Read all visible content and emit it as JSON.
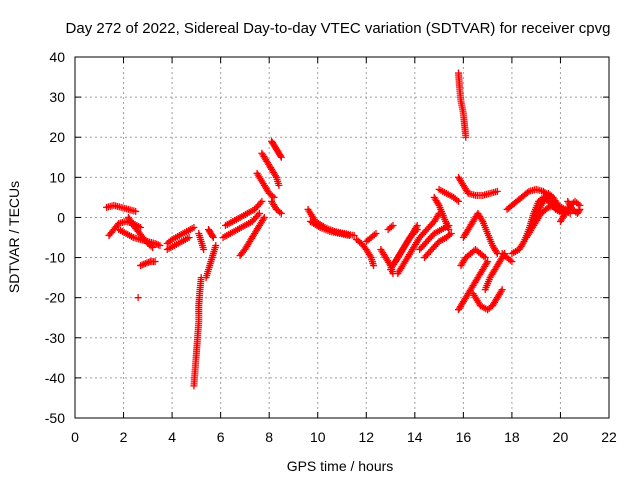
{
  "chart_data": {
    "type": "scatter",
    "title": "Day 272 of 2022, Sidereal Day-to-day VTEC variation (SDTVAR) for receiver cpvg",
    "xlabel": "GPS time / hours",
    "ylabel": "SDTVAR / TECUs",
    "xlim": [
      0,
      22
    ],
    "ylim": [
      -50,
      40
    ],
    "xticks": [
      0,
      2,
      4,
      6,
      8,
      10,
      12,
      14,
      16,
      18,
      20,
      22
    ],
    "yticks": [
      -50,
      -40,
      -30,
      -20,
      -10,
      0,
      10,
      20,
      30,
      40
    ],
    "grid": true,
    "marker": "+",
    "series": [
      {
        "name": "SDTVAR",
        "color": "#ff0000",
        "segments": [
          [
            [
              1.4,
              -4.5
            ],
            [
              1.6,
              -3
            ],
            [
              1.8,
              -1.5
            ],
            [
              2.1,
              -1
            ],
            [
              2.4,
              -1.5
            ],
            [
              2.7,
              -2.5
            ]
          ],
          [
            [
              1.3,
              2.5
            ],
            [
              1.6,
              3
            ],
            [
              1.9,
              2.5
            ],
            [
              2.2,
              2
            ],
            [
              2.5,
              1.5
            ]
          ],
          [
            [
              2.2,
              0
            ],
            [
              2.4,
              -2
            ],
            [
              2.6,
              -3.5
            ],
            [
              2.8,
              -5
            ],
            [
              3.0,
              -6.5
            ],
            [
              3.2,
              -7.5
            ]
          ],
          [
            [
              1.8,
              -3
            ],
            [
              2.1,
              -4
            ],
            [
              2.4,
              -5
            ],
            [
              2.7,
              -5.5
            ],
            [
              3.0,
              -6
            ],
            [
              3.3,
              -6.5
            ],
            [
              3.5,
              -7
            ]
          ],
          [
            [
              2.7,
              -12
            ],
            [
              2.9,
              -11.5
            ],
            [
              3.1,
              -11
            ],
            [
              3.3,
              -11
            ]
          ],
          [
            [
              2.6,
              -20
            ]
          ],
          [
            [
              3.8,
              -6.5
            ],
            [
              4.0,
              -5.5
            ],
            [
              4.3,
              -4.5
            ],
            [
              4.6,
              -3.5
            ],
            [
              4.9,
              -2.5
            ]
          ],
          [
            [
              3.8,
              -8
            ],
            [
              4.1,
              -7
            ],
            [
              4.4,
              -6
            ],
            [
              4.7,
              -5
            ]
          ],
          [
            [
              4.9,
              -42
            ],
            [
              4.95,
              -38
            ],
            [
              5.0,
              -34
            ],
            [
              5.05,
              -30
            ],
            [
              5.1,
              -26
            ],
            [
              5.1,
              -22
            ],
            [
              5.15,
              -18
            ],
            [
              5.2,
              -15
            ]
          ],
          [
            [
              5.1,
              -4
            ],
            [
              5.2,
              -6
            ],
            [
              5.3,
              -8
            ]
          ],
          [
            [
              5.4,
              -15
            ],
            [
              5.5,
              -13
            ],
            [
              5.6,
              -11
            ],
            [
              5.7,
              -9
            ],
            [
              5.8,
              -7
            ]
          ],
          [
            [
              5.5,
              -3
            ],
            [
              5.6,
              -4
            ],
            [
              5.7,
              -5
            ]
          ],
          [
            [
              6.1,
              -5
            ],
            [
              6.4,
              -4
            ],
            [
              6.7,
              -3
            ],
            [
              7.0,
              -2
            ],
            [
              7.3,
              -1
            ],
            [
              7.6,
              1
            ]
          ],
          [
            [
              6.2,
              -2
            ],
            [
              6.5,
              -1
            ],
            [
              6.8,
              0
            ],
            [
              7.1,
              1
            ],
            [
              7.4,
              2
            ],
            [
              7.7,
              4
            ]
          ],
          [
            [
              6.8,
              -9.5
            ],
            [
              7.0,
              -8
            ],
            [
              7.2,
              -6
            ],
            [
              7.4,
              -4
            ],
            [
              7.6,
              -2
            ],
            [
              7.8,
              0
            ]
          ],
          [
            [
              7.5,
              11
            ],
            [
              7.8,
              8
            ],
            [
              8.0,
              6
            ],
            [
              8.2,
              5
            ]
          ],
          [
            [
              7.7,
              16
            ],
            [
              7.9,
              14
            ],
            [
              8.1,
              12
            ],
            [
              8.3,
              10
            ],
            [
              8.4,
              8
            ]
          ],
          [
            [
              8.1,
              19
            ],
            [
              8.2,
              18
            ],
            [
              8.3,
              17
            ],
            [
              8.4,
              16
            ],
            [
              8.5,
              15
            ]
          ],
          [
            [
              8.1,
              4
            ],
            [
              8.3,
              2
            ],
            [
              8.5,
              1
            ]
          ],
          [
            [
              9.6,
              2
            ],
            [
              9.9,
              -1
            ],
            [
              10.3,
              -2.5
            ],
            [
              10.7,
              -3.5
            ],
            [
              11.1,
              -4
            ],
            [
              11.5,
              -4.5
            ]
          ],
          [
            [
              9.7,
              -1
            ],
            [
              10.1,
              -2.5
            ],
            [
              10.5,
              -3.5
            ],
            [
              10.9,
              -4
            ],
            [
              11.3,
              -4.5
            ]
          ],
          [
            [
              11.6,
              -5.5
            ],
            [
              11.8,
              -6.5
            ],
            [
              12.0,
              -8
            ],
            [
              12.2,
              -10
            ],
            [
              12.3,
              -12
            ]
          ],
          [
            [
              12.0,
              -6
            ],
            [
              12.2,
              -5
            ],
            [
              12.4,
              -4
            ]
          ],
          [
            [
              12.6,
              -8
            ],
            [
              12.8,
              -10
            ],
            [
              13.0,
              -12
            ],
            [
              13.1,
              -14
            ]
          ],
          [
            [
              12.9,
              -3
            ],
            [
              13.1,
              -2
            ]
          ],
          [
            [
              13.0,
              -13
            ],
            [
              13.3,
              -10
            ],
            [
              13.6,
              -7
            ],
            [
              13.9,
              -4
            ],
            [
              14.1,
              -2
            ]
          ],
          [
            [
              13.2,
              -11
            ],
            [
              13.5,
              -8
            ],
            [
              13.8,
              -5
            ],
            [
              14.1,
              -3
            ]
          ],
          [
            [
              13.3,
              -14
            ],
            [
              13.6,
              -11
            ],
            [
              13.9,
              -8
            ],
            [
              14.2,
              -5
            ],
            [
              14.5,
              -3
            ],
            [
              14.8,
              -1
            ],
            [
              15.0,
              1
            ]
          ],
          [
            [
              14.2,
              -8
            ],
            [
              14.5,
              -6
            ],
            [
              14.8,
              -4
            ],
            [
              15.1,
              -3
            ],
            [
              15.4,
              -2
            ]
          ],
          [
            [
              14.4,
              -10
            ],
            [
              14.7,
              -8
            ],
            [
              15.0,
              -6
            ],
            [
              15.3,
              -5
            ],
            [
              15.5,
              -4
            ]
          ],
          [
            [
              14.8,
              5
            ],
            [
              15.0,
              3
            ],
            [
              15.2,
              0
            ],
            [
              15.4,
              -3
            ]
          ],
          [
            [
              15.0,
              7
            ],
            [
              15.3,
              6
            ],
            [
              15.6,
              5
            ],
            [
              15.8,
              4
            ]
          ],
          [
            [
              15.8,
              36
            ],
            [
              15.85,
              32
            ],
            [
              15.9,
              29
            ],
            [
              16.0,
              26
            ],
            [
              16.05,
              23
            ],
            [
              16.1,
              20
            ]
          ],
          [
            [
              15.8,
              10
            ],
            [
              16.0,
              8
            ],
            [
              16.2,
              6
            ],
            [
              16.5,
              5.5
            ],
            [
              16.8,
              5.5
            ],
            [
              17.1,
              6
            ],
            [
              17.4,
              6.5
            ]
          ],
          [
            [
              15.8,
              -23
            ],
            [
              16.0,
              -21
            ],
            [
              16.2,
              -19
            ],
            [
              16.4,
              -17
            ],
            [
              16.6,
              -15
            ],
            [
              16.8,
              -13
            ],
            [
              17.0,
              -11
            ]
          ],
          [
            [
              15.9,
              -12
            ],
            [
              16.1,
              -10
            ],
            [
              16.3,
              -9
            ],
            [
              16.5,
              -8
            ],
            [
              16.7,
              -9
            ],
            [
              16.9,
              -10
            ]
          ],
          [
            [
              16.0,
              -5
            ],
            [
              16.2,
              -3
            ],
            [
              16.4,
              -1
            ],
            [
              16.6,
              1
            ],
            [
              16.8,
              -1
            ],
            [
              17.0,
              -4
            ],
            [
              17.2,
              -7
            ],
            [
              17.4,
              -9
            ]
          ],
          [
            [
              16.4,
              -19
            ],
            [
              16.7,
              -22
            ],
            [
              17.0,
              -23
            ],
            [
              17.2,
              -22
            ],
            [
              17.4,
              -20
            ],
            [
              17.6,
              -18
            ]
          ],
          [
            [
              16.9,
              -18
            ],
            [
              17.1,
              -15
            ],
            [
              17.3,
              -13
            ],
            [
              17.5,
              -11
            ],
            [
              17.7,
              -9
            ]
          ],
          [
            [
              17.6,
              -9
            ],
            [
              17.8,
              -10
            ],
            [
              18.0,
              -11
            ]
          ],
          [
            [
              17.8,
              2
            ],
            [
              18.1,
              3.5
            ],
            [
              18.4,
              5
            ],
            [
              18.7,
              6.5
            ],
            [
              19.0,
              7
            ],
            [
              19.3,
              6.5
            ],
            [
              19.6,
              5
            ],
            [
              19.9,
              3
            ],
            [
              20.2,
              2
            ]
          ],
          [
            [
              18.0,
              -9
            ],
            [
              18.3,
              -8
            ],
            [
              18.5,
              -6
            ],
            [
              18.7,
              -3
            ],
            [
              18.9,
              1
            ],
            [
              19.1,
              4
            ],
            [
              19.3,
              5
            ],
            [
              19.5,
              4
            ],
            [
              19.8,
              2
            ],
            [
              20.1,
              1
            ]
          ],
          [
            [
              18.6,
              -5
            ],
            [
              18.9,
              -2
            ],
            [
              19.2,
              1
            ],
            [
              19.5,
              2.5
            ],
            [
              19.8,
              3
            ],
            [
              20.1,
              2
            ],
            [
              20.4,
              1
            ]
          ],
          [
            [
              18.9,
              -1
            ],
            [
              19.2,
              3
            ],
            [
              19.5,
              6
            ],
            [
              19.7,
              5
            ],
            [
              19.9,
              3
            ]
          ],
          [
            [
              20.0,
              -1
            ],
            [
              20.2,
              1
            ],
            [
              20.4,
              3
            ],
            [
              20.6,
              4
            ],
            [
              20.8,
              3
            ]
          ],
          [
            [
              20.3,
              4
            ],
            [
              20.5,
              2
            ],
            [
              20.7,
              1
            ],
            [
              20.8,
              2
            ]
          ]
        ]
      }
    ]
  }
}
